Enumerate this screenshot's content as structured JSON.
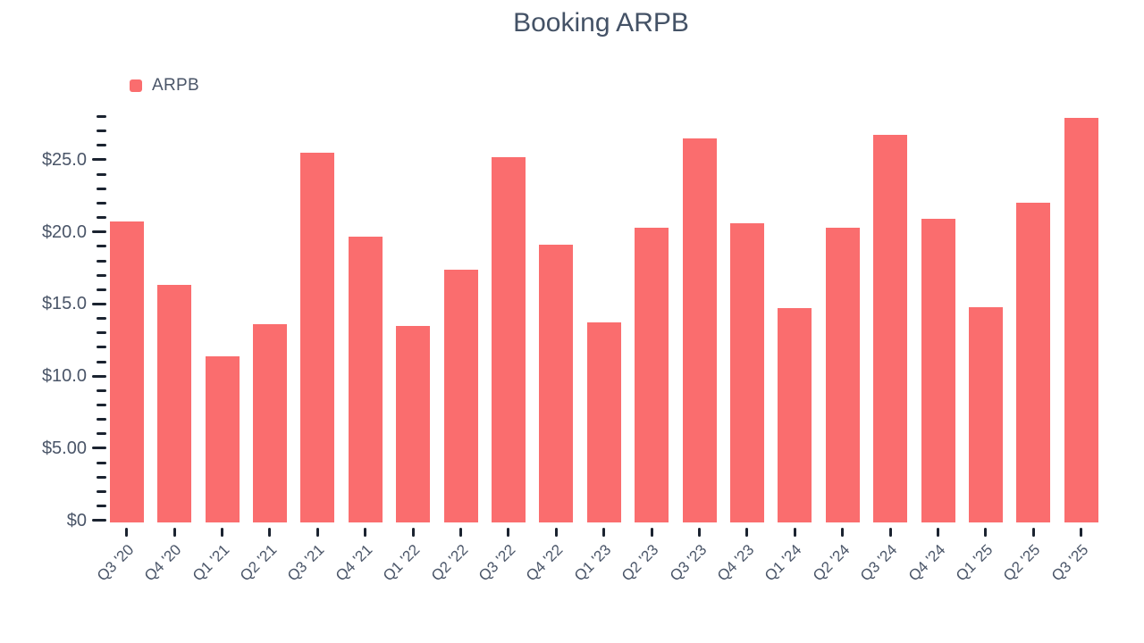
{
  "title": "Booking ARPB",
  "legend": {
    "items": [
      {
        "label": "ARPB",
        "color": "#fa6d6e"
      }
    ]
  },
  "colors": {
    "bar": "#fa6d6e",
    "axis_text": "#4a5568",
    "tick": "#1b2330",
    "title_text": "#445266",
    "background": "#ffffff"
  },
  "chart_data": {
    "type": "bar",
    "title": "Booking ARPB",
    "xlabel": "",
    "ylabel": "",
    "categories": [
      "Q3 '20",
      "Q4 '20",
      "Q1 '21",
      "Q2 '21",
      "Q3 '21",
      "Q4 '21",
      "Q1 '22",
      "Q2 '22",
      "Q3 '22",
      "Q4 '22",
      "Q1 '23",
      "Q2 '23",
      "Q3 '23",
      "Q4 '23",
      "Q1 '24",
      "Q2 '24",
      "Q3 '24",
      "Q4 '24",
      "Q1 '25",
      "Q2 '25",
      "Q3 '25"
    ],
    "series": [
      {
        "name": "ARPB",
        "values": [
          20.7,
          16.3,
          11.4,
          13.6,
          25.5,
          19.7,
          13.5,
          17.4,
          25.2,
          19.1,
          13.7,
          20.3,
          26.5,
          20.6,
          14.7,
          20.3,
          26.7,
          20.9,
          14.8,
          22.0,
          27.9
        ]
      }
    ],
    "ylim": [
      0,
      28
    ],
    "y_major_tick_interval": 5,
    "y_minor_tick_interval": 1,
    "y_tick_labels": [
      {
        "value": 0,
        "label": "$0"
      },
      {
        "value": 5,
        "label": "$5.00"
      },
      {
        "value": 10,
        "label": "$10.0"
      },
      {
        "value": 15,
        "label": "$15.0"
      },
      {
        "value": 20,
        "label": "$20.0"
      },
      {
        "value": 25,
        "label": "$25.0"
      }
    ],
    "grid": false,
    "legend_position": "top-left"
  }
}
